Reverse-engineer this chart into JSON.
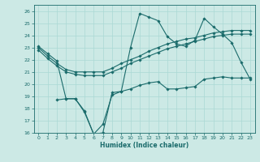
{
  "xlabel": "Humidex (Indice chaleur)",
  "x_ticks": [
    0,
    1,
    2,
    3,
    4,
    5,
    6,
    7,
    8,
    9,
    10,
    11,
    12,
    13,
    14,
    15,
    16,
    17,
    18,
    19,
    20,
    21,
    22,
    23
  ],
  "ylim": [
    16,
    26.5
  ],
  "xlim": [
    -0.5,
    23.5
  ],
  "yticks": [
    16,
    17,
    18,
    19,
    20,
    21,
    22,
    23,
    24,
    25,
    26
  ],
  "bg_color": "#cce9e5",
  "line_color": "#1a6b6b",
  "grid_color": "#aad9d4",
  "line1_x": [
    0,
    1,
    2,
    3,
    4,
    5,
    6,
    7,
    8,
    9,
    10,
    11,
    12,
    13,
    14,
    15,
    16,
    17,
    18,
    19,
    20,
    21,
    22,
    23
  ],
  "line1_y": [
    23.0,
    22.3,
    21.7,
    21.2,
    21.0,
    21.0,
    21.0,
    21.0,
    21.3,
    21.7,
    22.0,
    22.3,
    22.7,
    23.0,
    23.3,
    23.5,
    23.7,
    23.8,
    24.0,
    24.2,
    24.3,
    24.4,
    24.4,
    24.4
  ],
  "line2_x": [
    0,
    1,
    2,
    3,
    4,
    5,
    6,
    7,
    8,
    9,
    10,
    11,
    12,
    13,
    14,
    15,
    16,
    17,
    18,
    19,
    20,
    21,
    22,
    23
  ],
  "line2_y": [
    22.8,
    22.1,
    21.5,
    21.0,
    20.8,
    20.7,
    20.7,
    20.7,
    21.0,
    21.3,
    21.7,
    22.0,
    22.3,
    22.6,
    22.9,
    23.1,
    23.3,
    23.5,
    23.7,
    23.9,
    24.0,
    24.1,
    24.1,
    24.1
  ],
  "line3_x": [
    0,
    1,
    2,
    3,
    4,
    5,
    6,
    7,
    8,
    9,
    10,
    11,
    12,
    13,
    14,
    15,
    16,
    17,
    18,
    19,
    20,
    21,
    22,
    23
  ],
  "line3_y": [
    23.1,
    22.5,
    21.9,
    18.8,
    18.8,
    17.7,
    15.9,
    16.7,
    19.1,
    19.4,
    23.0,
    25.8,
    25.5,
    25.2,
    23.9,
    23.3,
    23.1,
    23.6,
    25.4,
    24.7,
    24.1,
    23.4,
    21.8,
    20.4
  ],
  "line4_x": [
    2,
    3,
    4,
    5,
    6,
    7,
    8,
    9,
    10,
    11,
    12,
    13,
    14,
    15,
    16,
    17,
    18,
    19,
    20,
    21,
    22,
    23
  ],
  "line4_y": [
    18.7,
    18.8,
    18.8,
    17.8,
    15.9,
    16.0,
    19.3,
    19.4,
    19.6,
    19.9,
    20.1,
    20.2,
    19.6,
    19.6,
    19.7,
    19.8,
    20.4,
    20.5,
    20.6,
    20.5,
    20.5,
    20.5
  ]
}
